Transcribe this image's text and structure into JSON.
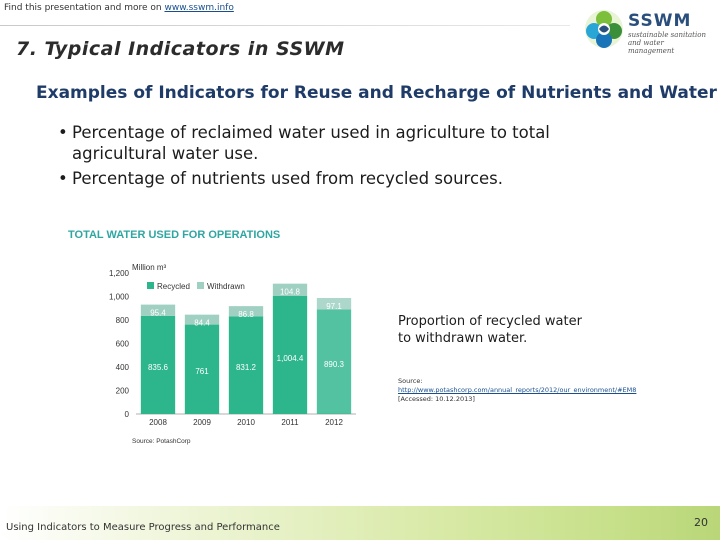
{
  "header": {
    "prefix": "Find this presentation and more on",
    "link": "www.sswm.info"
  },
  "logo": {
    "name": "SSWM",
    "tagline1": "sustainable sanitation",
    "tagline2": "and water management"
  },
  "slide": {
    "title": "7. Typical Indicators in SSWM",
    "subtitle": "Examples of Indicators for Reuse and Recharge of Nutrients and Water",
    "bullets": [
      "Percentage of reclaimed water used in agriculture to total agricultural water use.",
      "Percentage of nutrients used from recycled sources."
    ],
    "proportion_note": "Proportion of recycled water to withdrawn water.",
    "source_label": "Source:",
    "source_link": "http://www.potashcorp.com/annual_reports/2012/our_environment/#EM8",
    "source_accessed": "[Accessed: 10.12.2013]"
  },
  "footer": {
    "text": "Using Indicators to Measure Progress and Performance",
    "page": "20"
  },
  "colors": {
    "recycled": "#9fd0c2",
    "withdrawn": "#2db58c",
    "chart_title": "#2fa6a1"
  },
  "chart_data": {
    "type": "bar",
    "title": "TOTAL WATER USED FOR OPERATIONS",
    "ylabel": "Million m³",
    "source": "Source: PotashCorp",
    "categories": [
      "2008",
      "2009",
      "2010",
      "2011",
      "2012"
    ],
    "series": [
      {
        "name": "Recycled",
        "values": [
          835.6,
          761,
          831.2,
          1004.4,
          890.3
        ]
      },
      {
        "name": "Withdrawn",
        "values": [
          95.4,
          84.4,
          86.8,
          104.8,
          97.1
        ]
      }
    ],
    "stacked": true,
    "ylim": [
      0,
      1200
    ],
    "yticks": [
      0,
      200,
      400,
      600,
      800,
      1000,
      1200
    ],
    "ytick_labels": [
      "0",
      "200",
      "400",
      "600",
      "800",
      "1,000",
      "1,200"
    ],
    "data_labels": {
      "Recycled": [
        "835.6",
        "761",
        "831.2",
        "1,004.4",
        "890.3"
      ],
      "Withdrawn": [
        "95.4",
        "84.4",
        "86.8",
        "104.8",
        "97.1"
      ]
    },
    "legend_position": "top-left"
  }
}
